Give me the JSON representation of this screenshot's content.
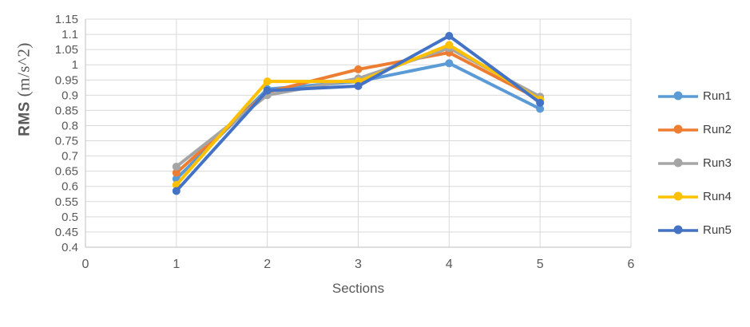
{
  "chart_data": {
    "type": "line",
    "title": "",
    "xlabel": "Sections",
    "ylabel": "RMS (m/s^2)",
    "ylabel_parts": {
      "prefix": "RMS",
      "units": " (m/s^2)"
    },
    "x": [
      1,
      2,
      3,
      4,
      5
    ],
    "xlim": [
      0,
      6
    ],
    "xticks": [
      0,
      1,
      2,
      3,
      4,
      5,
      6
    ],
    "ylim": [
      0.4,
      1.15
    ],
    "ytick_step": 0.05,
    "grid": "horizontal-and-vertical",
    "legend_position": "right",
    "series": [
      {
        "name": "Run1",
        "color": "#5B9BD5",
        "marker": "circle",
        "values": [
          0.625,
          0.92,
          0.945,
          1.005,
          0.855
        ]
      },
      {
        "name": "Run2",
        "color": "#ED7D31",
        "marker": "circle",
        "values": [
          0.645,
          0.91,
          0.985,
          1.04,
          0.885
        ]
      },
      {
        "name": "Run3",
        "color": "#A5A5A5",
        "marker": "circle",
        "values": [
          0.665,
          0.9,
          0.955,
          1.055,
          0.895
        ]
      },
      {
        "name": "Run4",
        "color": "#FFC000",
        "marker": "circle",
        "values": [
          0.605,
          0.945,
          0.945,
          1.065,
          0.885
        ]
      },
      {
        "name": "Run5",
        "color": "#4472C4",
        "marker": "circle",
        "values": [
          0.585,
          0.915,
          0.93,
          1.095,
          0.875
        ]
      }
    ],
    "colors": {
      "gridline": "#D9D9D9",
      "axis_line": "#BFBFBF",
      "tick_text": "#595959",
      "legend_text": "#404040"
    }
  }
}
